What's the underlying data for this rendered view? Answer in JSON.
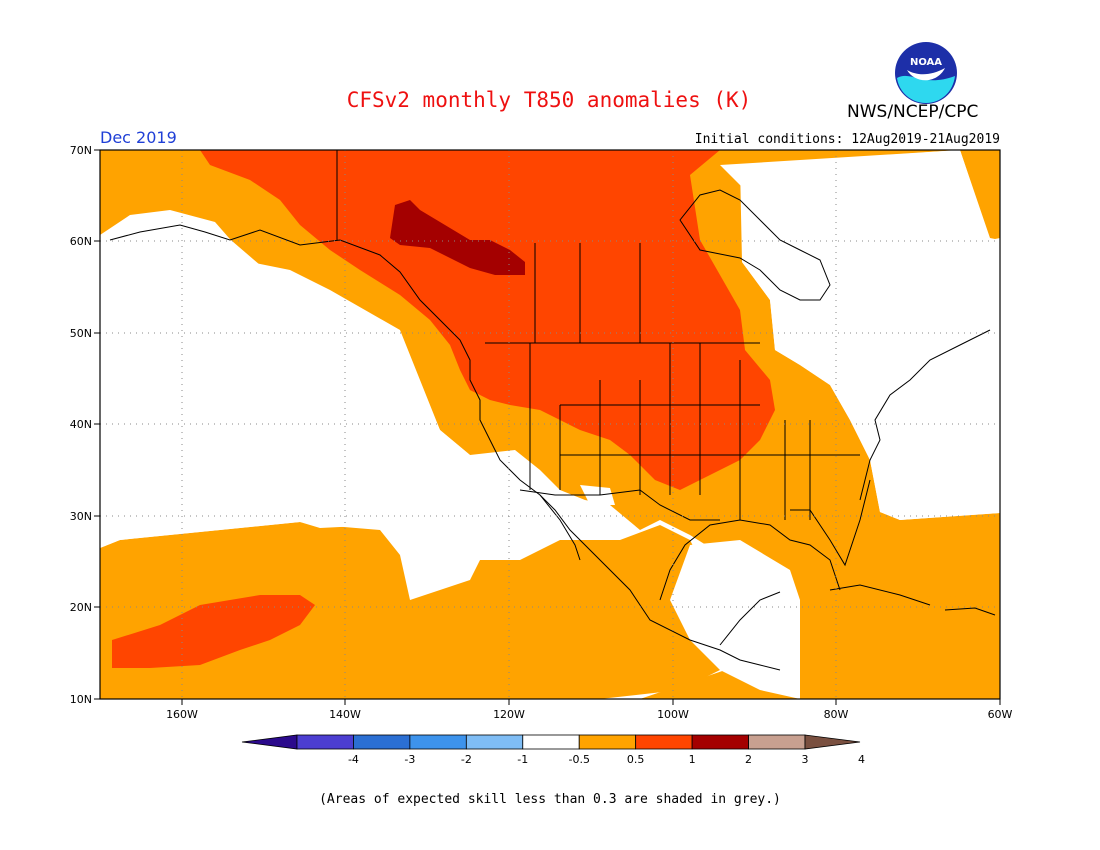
{
  "header": {
    "title": "CFSv2 monthly T850 anomalies (K)",
    "title_color": "#ee1010",
    "month": "Dec 2019",
    "org": "NWS/NCEP/CPC",
    "initial_conditions": "Initial conditions: 12Aug2019-21Aug2019",
    "logo_icon": "noaa-logo",
    "logo_text": "NOAA"
  },
  "map": {
    "projection": "lat-lon",
    "lon_range": [
      -170,
      -60
    ],
    "lat_range": [
      10,
      70
    ],
    "lat_ticks": [
      "70N",
      "60N",
      "50N",
      "40N",
      "30N",
      "20N",
      "10N"
    ],
    "lon_ticks": [
      "160W",
      "140W",
      "120W",
      "100W",
      "80W",
      "60W"
    ],
    "grid": "dotted",
    "regions": {
      "0.5-1": "broad warm anomaly over the northeast Pacific, western/central North America, Gulf of Mexico, Atlantic and subtropical Pacific",
      "1-2": "western Canada, Alaska panhandle, northern and central Plains, Great Lakes west, band near Hawaii",
      "2-3": "small core over northern British Columbia / Yukon"
    }
  },
  "colorbar": {
    "labels": [
      "-4",
      "-3",
      "-2",
      "-1",
      "-0.5",
      "0.5",
      "1",
      "2",
      "3",
      "4"
    ],
    "colors": [
      "#2b0a8c",
      "#4c3ed1",
      "#2b6fd3",
      "#3d93ec",
      "#7fbdf5",
      "#ffffff",
      "#ffa300",
      "#ff4500",
      "#a40000",
      "#c8a090",
      "#7a5040"
    ]
  },
  "footnote": "(Areas of expected skill less than 0.3 are shaded in grey.)",
  "colors": {
    "orange": "#ffa300",
    "red": "#ff4500",
    "dark_red": "#a40000",
    "coast": "#000000"
  }
}
